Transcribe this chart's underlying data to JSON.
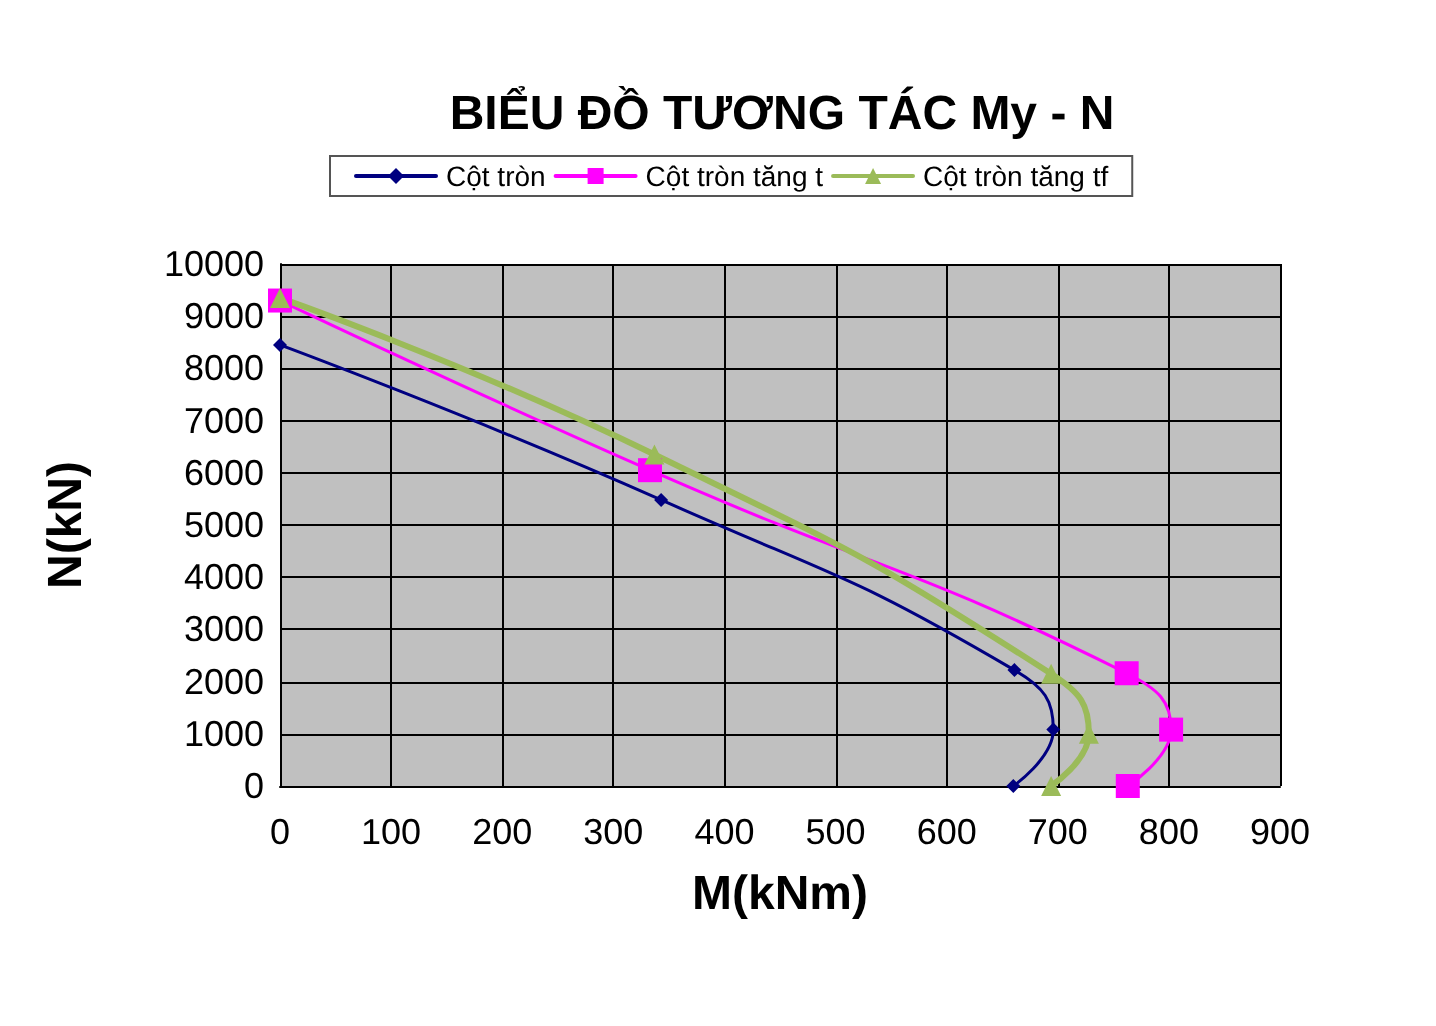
{
  "chart_data": {
    "type": "line",
    "title": "BIỂU ĐỒ TƯƠNG TÁC My - N",
    "xlabel": "M(kNm)",
    "ylabel": "N(kN)",
    "xlim": [
      0,
      900
    ],
    "xticks": [
      0,
      100,
      200,
      300,
      400,
      500,
      600,
      700,
      800,
      900
    ],
    "ylim": [
      0,
      10000
    ],
    "yticks": [
      0,
      1000,
      2000,
      3000,
      4000,
      5000,
      6000,
      7000,
      8000,
      9000,
      10000
    ],
    "grid": true,
    "legend": "top",
    "series": [
      {
        "name": "Cột tròn",
        "color": "#000080",
        "marker": "diamond",
        "x": [
          0,
          343,
          661,
          696,
          660
        ],
        "values": [
          8450,
          5480,
          2220,
          1080,
          0
        ]
      },
      {
        "name": "Cột tròn tăng t",
        "color": "#ff00ff",
        "marker": "square",
        "x": [
          0,
          333,
          762,
          802,
          763
        ],
        "values": [
          9300,
          6050,
          2160,
          1080,
          0
        ]
      },
      {
        "name": "Cột tròn tăng tf",
        "color": "#9bbb59",
        "marker": "triangle",
        "x": [
          0,
          337,
          694,
          728,
          694
        ],
        "values": [
          9350,
          6350,
          2150,
          1000,
          0
        ]
      }
    ]
  }
}
